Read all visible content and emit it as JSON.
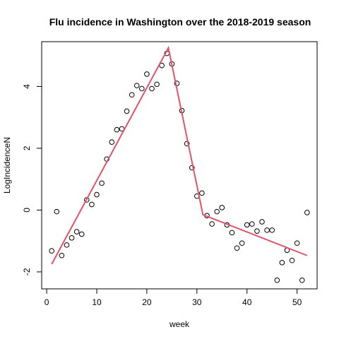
{
  "chart_data": {
    "type": "scatter",
    "title": "Flu incidence in Washington over the 2018-2019 season",
    "xlabel": "week",
    "ylabel": "LogIncidenceN",
    "xlim": [
      -1,
      54
    ],
    "ylim": [
      -2.55,
      5.45
    ],
    "xticks": [
      0,
      10,
      20,
      30,
      40,
      50
    ],
    "yticks": [
      -2,
      0,
      2,
      4
    ],
    "grid": false,
    "legend": "none",
    "point_color": "#000000",
    "line_color": "#DF536B",
    "points": [
      [
        1,
        -1.32
      ],
      [
        2,
        -0.05
      ],
      [
        3,
        -1.47
      ],
      [
        4,
        -1.13
      ],
      [
        5,
        -0.9
      ],
      [
        6,
        -0.7
      ],
      [
        7,
        -0.78
      ],
      [
        8,
        0.33
      ],
      [
        9,
        0.18
      ],
      [
        10,
        0.5
      ],
      [
        11,
        0.87
      ],
      [
        12,
        1.65
      ],
      [
        13,
        2.2
      ],
      [
        14,
        2.6
      ],
      [
        15,
        2.63
      ],
      [
        16,
        3.2
      ],
      [
        17,
        3.73
      ],
      [
        18,
        4.03
      ],
      [
        19,
        3.93
      ],
      [
        20,
        4.4
      ],
      [
        21,
        3.93
      ],
      [
        22,
        4.07
      ],
      [
        23,
        4.68
      ],
      [
        24,
        5.07
      ],
      [
        25,
        4.73
      ],
      [
        26,
        4.1
      ],
      [
        27,
        3.22
      ],
      [
        28,
        2.15
      ],
      [
        29,
        1.37
      ],
      [
        30,
        0.45
      ],
      [
        31,
        0.55
      ],
      [
        32,
        -0.18
      ],
      [
        33,
        -0.45
      ],
      [
        34,
        -0.05
      ],
      [
        35,
        0.08
      ],
      [
        36,
        -0.48
      ],
      [
        37,
        -0.73
      ],
      [
        38,
        -1.23
      ],
      [
        39,
        -1.07
      ],
      [
        40,
        -0.48
      ],
      [
        41,
        -0.45
      ],
      [
        42,
        -0.68
      ],
      [
        43,
        -0.38
      ],
      [
        44,
        -0.65
      ],
      [
        45,
        -0.65
      ],
      [
        46,
        -2.27
      ],
      [
        47,
        -1.7
      ],
      [
        48,
        -1.3
      ],
      [
        49,
        -1.63
      ],
      [
        50,
        -1.07
      ],
      [
        51,
        -2.27
      ],
      [
        52,
        -0.08
      ]
    ],
    "fit_line": [
      [
        1,
        -1.75
      ],
      [
        24.3,
        5.25
      ],
      [
        31.2,
        -0.15
      ],
      [
        52,
        -1.47
      ]
    ]
  }
}
